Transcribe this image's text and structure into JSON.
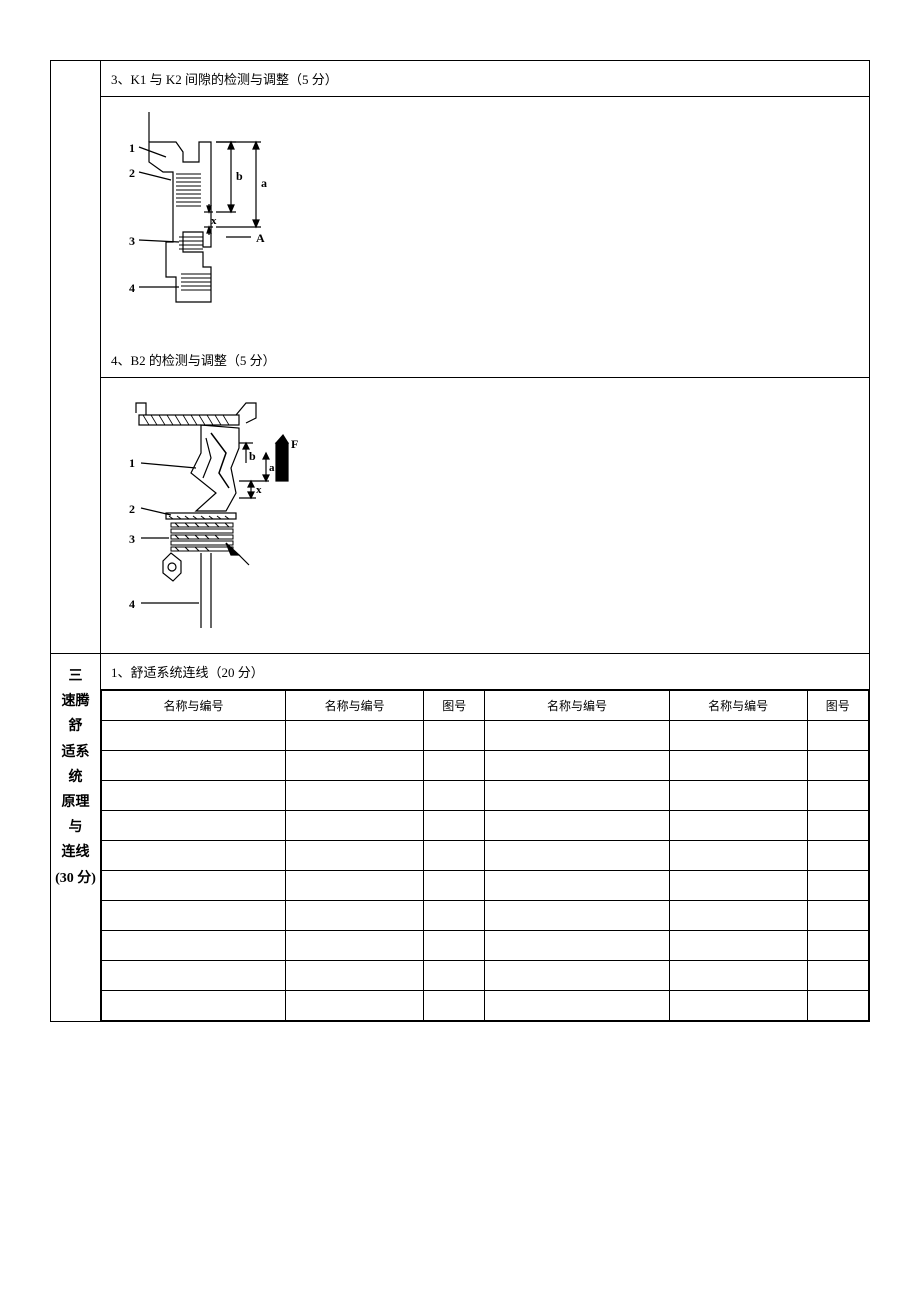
{
  "section_k1k2": {
    "title": "3、K1 与 K2 间隙的检测与调整（5 分）"
  },
  "section_b2": {
    "title": "4、B2 的检测与调整（5 分）"
  },
  "side_label": {
    "line1": "三",
    "line2": "速腾舒",
    "line3": "适系统",
    "line4": "原理与",
    "line5": "连线",
    "line6": "(30 分)"
  },
  "comfort_system": {
    "title": "1、舒适系统连线（20 分）",
    "headers": {
      "name1": "名称与编号",
      "name2": "名称与编号",
      "fig1": "图号",
      "name3": "名称与编号",
      "name4": "名称与编号",
      "fig2": "图号"
    },
    "row_count": 10
  },
  "diagram_k1k2": {
    "labels": {
      "l1": "1",
      "l2": "2",
      "l3": "3",
      "l4": "4",
      "b": "b",
      "a": "a",
      "x": "x",
      "A": "A"
    }
  },
  "diagram_b2": {
    "labels": {
      "l1": "1",
      "l2": "2",
      "l3": "3",
      "l4": "4",
      "b": "b",
      "a": "a",
      "x": "x",
      "F": "F"
    }
  },
  "style": {
    "line_color": "#000000",
    "bg_color": "#ffffff",
    "font_size_header": 13,
    "font_size_table": 12,
    "font_size_side": 14
  }
}
